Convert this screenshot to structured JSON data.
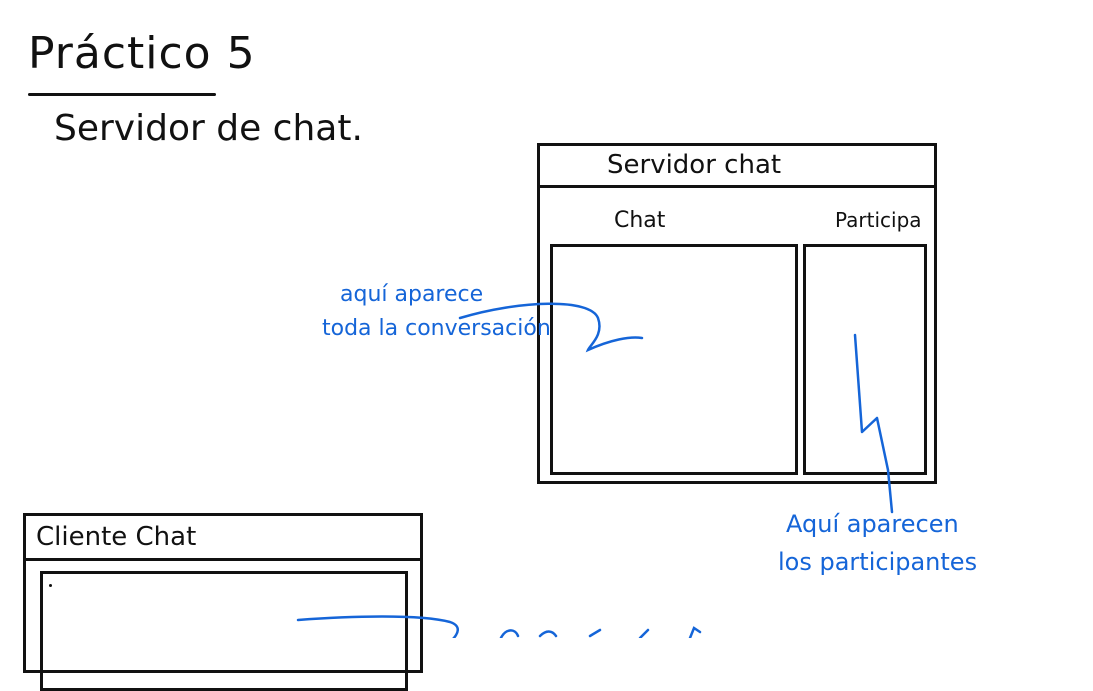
{
  "header": {
    "title": "Práctico 5",
    "subtitle": "Servidor de chat."
  },
  "server_window": {
    "title": "Servidor chat",
    "chat_label": "Chat",
    "participants_label": "Participa"
  },
  "client_window": {
    "title": "Cliente Chat"
  },
  "annotations": {
    "chat_note_line1": "aquí aparece",
    "chat_note_line2": "toda la conversación",
    "participants_note_line1": "Aquí aparecen",
    "participants_note_line2": "los participantes"
  },
  "colors": {
    "ink": "#111111",
    "annotation": "#1565d8"
  }
}
